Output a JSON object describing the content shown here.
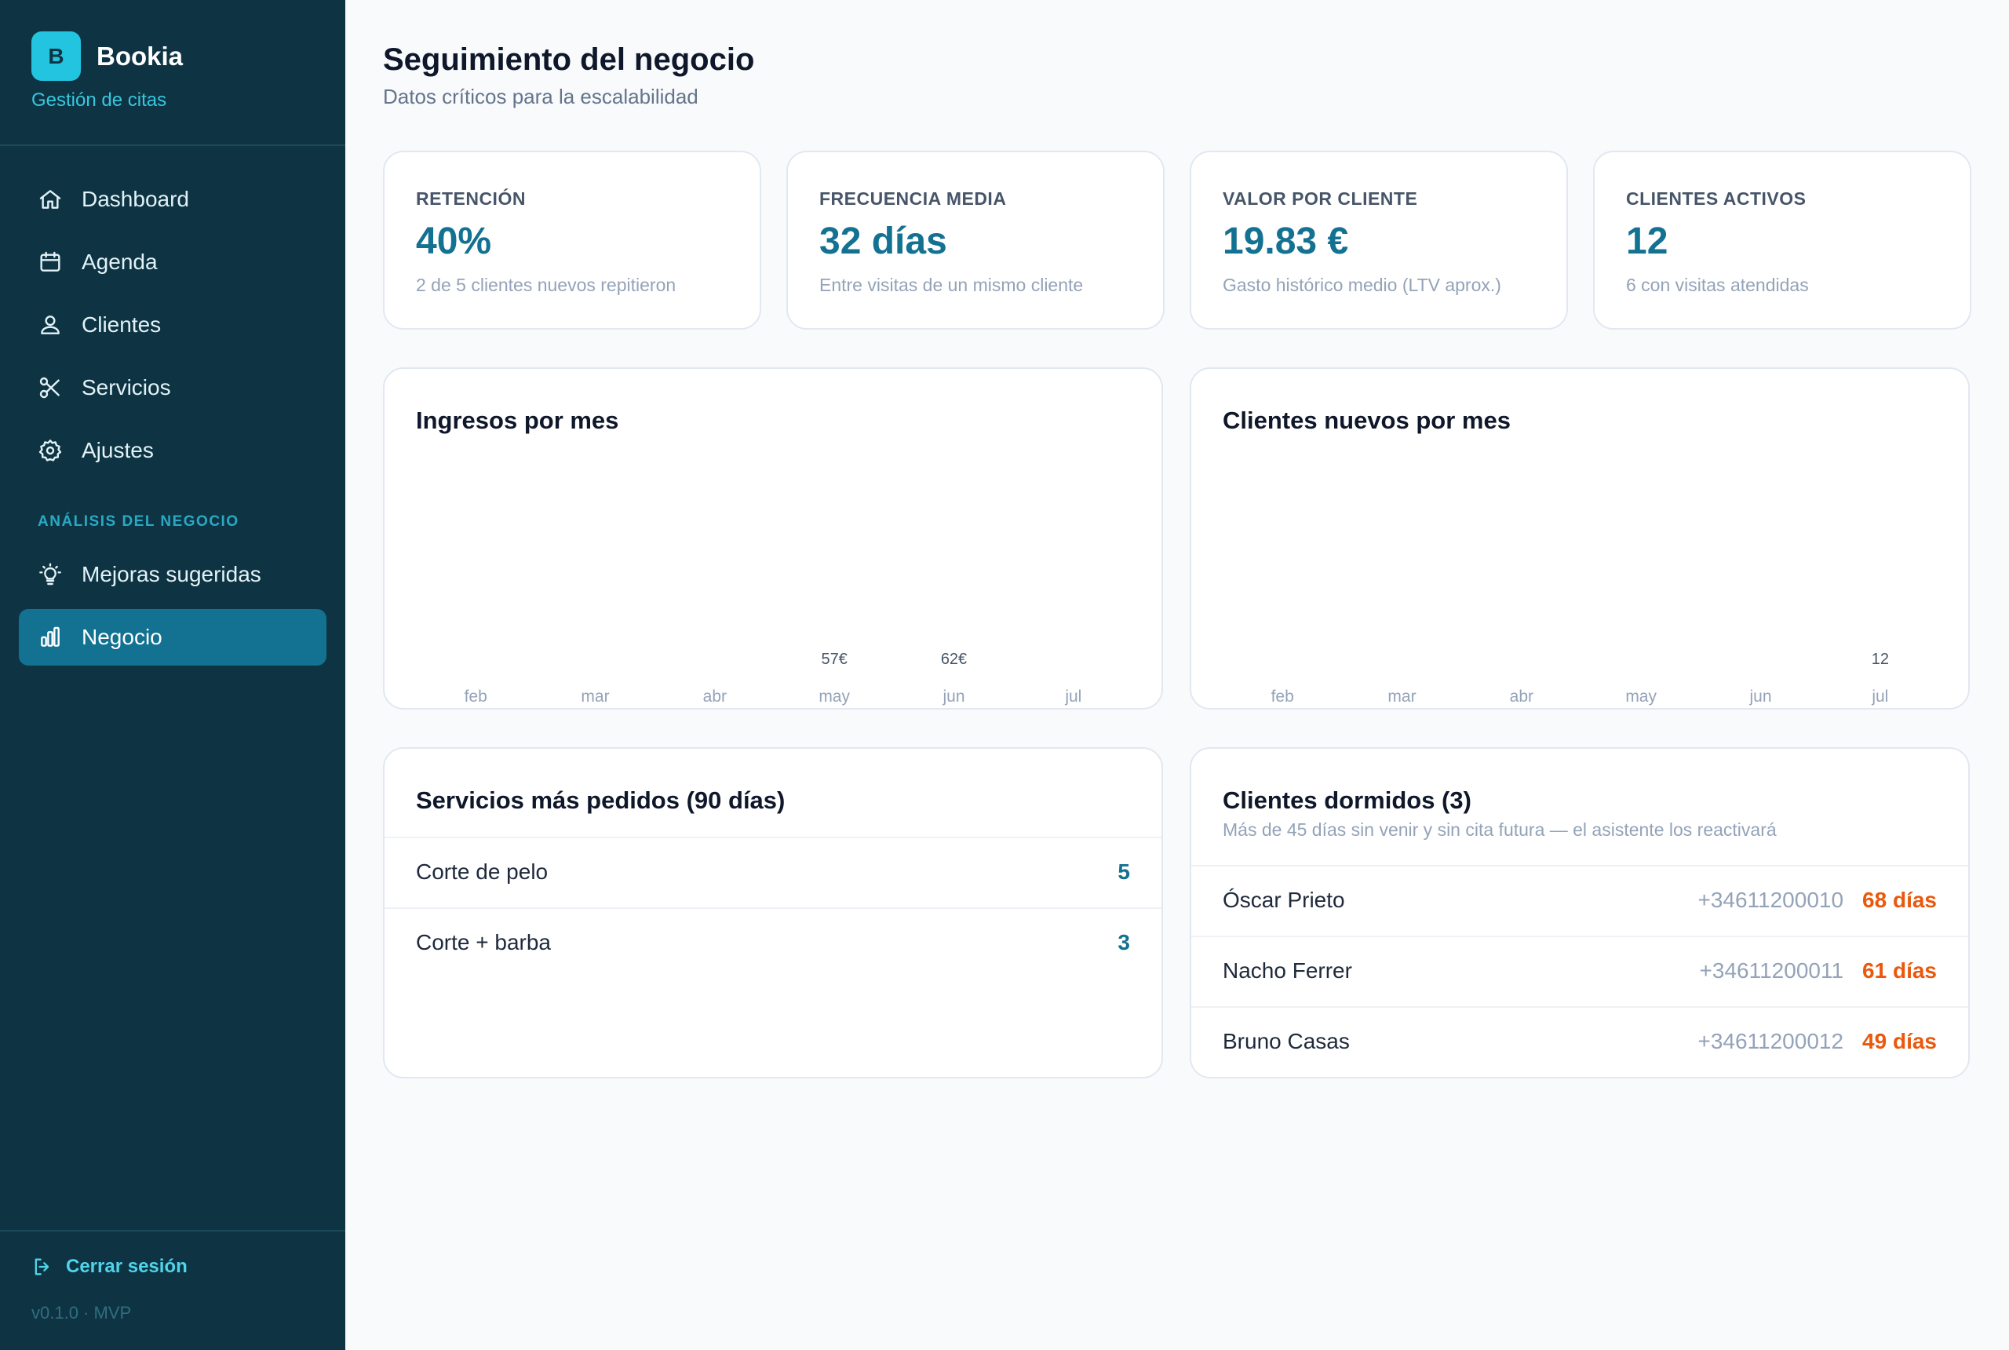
{
  "brand": {
    "logo_letter": "B",
    "name": "Bookia",
    "subtitle": "Gestión de citas"
  },
  "nav": {
    "items": [
      {
        "label": "Dashboard",
        "icon": "home-icon"
      },
      {
        "label": "Agenda",
        "icon": "calendar-icon"
      },
      {
        "label": "Clientes",
        "icon": "users-icon"
      },
      {
        "label": "Servicios",
        "icon": "scissors-icon"
      },
      {
        "label": "Ajustes",
        "icon": "gear-icon"
      }
    ],
    "section_label": "ANÁLISIS DEL NEGOCIO",
    "section_items": [
      {
        "label": "Mejoras sugeridas",
        "icon": "lightbulb-icon"
      },
      {
        "label": "Negocio",
        "icon": "bar-chart-icon",
        "active": true
      }
    ],
    "logout_label": "Cerrar sesión",
    "version": "v0.1.0 · MVP"
  },
  "header": {
    "title": "Seguimiento del negocio",
    "subtitle": "Datos críticos para la escalabilidad"
  },
  "kpis": [
    {
      "label": "RETENCIÓN",
      "value": "40%",
      "desc": "2 de 5 clientes nuevos repitieron"
    },
    {
      "label": "FRECUENCIA MEDIA",
      "value": "32 días",
      "desc": "Entre visitas de un mismo cliente"
    },
    {
      "label": "VALOR POR CLIENTE",
      "value": "19.83 €",
      "desc": "Gasto histórico medio (LTV aprox.)"
    },
    {
      "label": "CLIENTES ACTIVOS",
      "value": "12",
      "desc": "6 con visitas atendidas"
    }
  ],
  "chart_data": [
    {
      "type": "bar",
      "title": "Ingresos por mes",
      "categories": [
        "feb",
        "mar",
        "abr",
        "may",
        "jun",
        "jul"
      ],
      "values": [
        null,
        null,
        null,
        57,
        62,
        null
      ],
      "value_labels": [
        "",
        "",
        "",
        "57€",
        "62€",
        ""
      ]
    },
    {
      "type": "bar",
      "title": "Clientes nuevos por mes",
      "categories": [
        "feb",
        "mar",
        "abr",
        "may",
        "jun",
        "jul"
      ],
      "values": [
        null,
        null,
        null,
        null,
        null,
        12
      ],
      "value_labels": [
        "",
        "",
        "",
        "",
        "",
        "12"
      ]
    }
  ],
  "services": {
    "title": "Servicios más pedidos (90 días)",
    "items": [
      {
        "name": "Corte de pelo",
        "count": "5"
      },
      {
        "name": "Corte + barba",
        "count": "3"
      }
    ]
  },
  "dormant": {
    "title": "Clientes dormidos (3)",
    "subtitle": "Más de 45 días sin venir y sin cita futura — el asistente los reactivará",
    "items": [
      {
        "name": "Óscar Prieto",
        "phone": "+34611200010",
        "days": "68 días"
      },
      {
        "name": "Nacho Ferrer",
        "phone": "+34611200011",
        "days": "61 días"
      },
      {
        "name": "Bruno Casas",
        "phone": "+34611200012",
        "days": "49 días"
      }
    ]
  },
  "colors": {
    "sidebar": "#0e3444",
    "accent": "#137191",
    "brand": "#22c4e0",
    "warning": "#ea580c"
  }
}
